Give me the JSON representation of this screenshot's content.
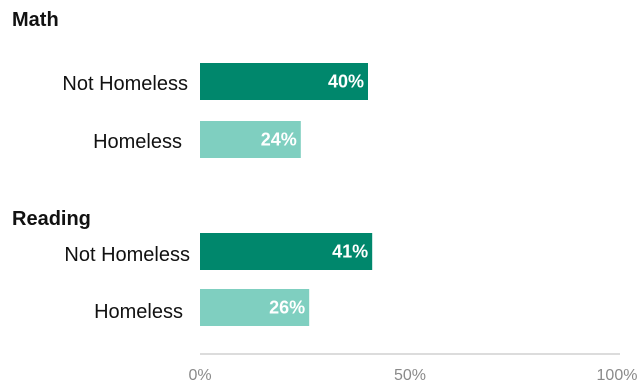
{
  "chart_data": {
    "type": "bar",
    "orientation": "horizontal",
    "xlim": [
      0,
      100
    ],
    "x_ticks": [
      "0%",
      "50%",
      "100%"
    ],
    "grid": false,
    "groups": [
      {
        "title": "Math",
        "bars": [
          {
            "category": "Not Homeless",
            "value": 40,
            "label": "40%",
            "color": "#00876c"
          },
          {
            "category": "Homeless",
            "value": 24,
            "label": "24%",
            "color": "#7fcfc0"
          }
        ]
      },
      {
        "title": "Reading",
        "bars": [
          {
            "category": "Not Homeless",
            "value": 41,
            "label": "41%",
            "color": "#00876c"
          },
          {
            "category": "Homeless",
            "value": 26,
            "label": "26%",
            "color": "#7fcfc0"
          }
        ]
      }
    ]
  }
}
